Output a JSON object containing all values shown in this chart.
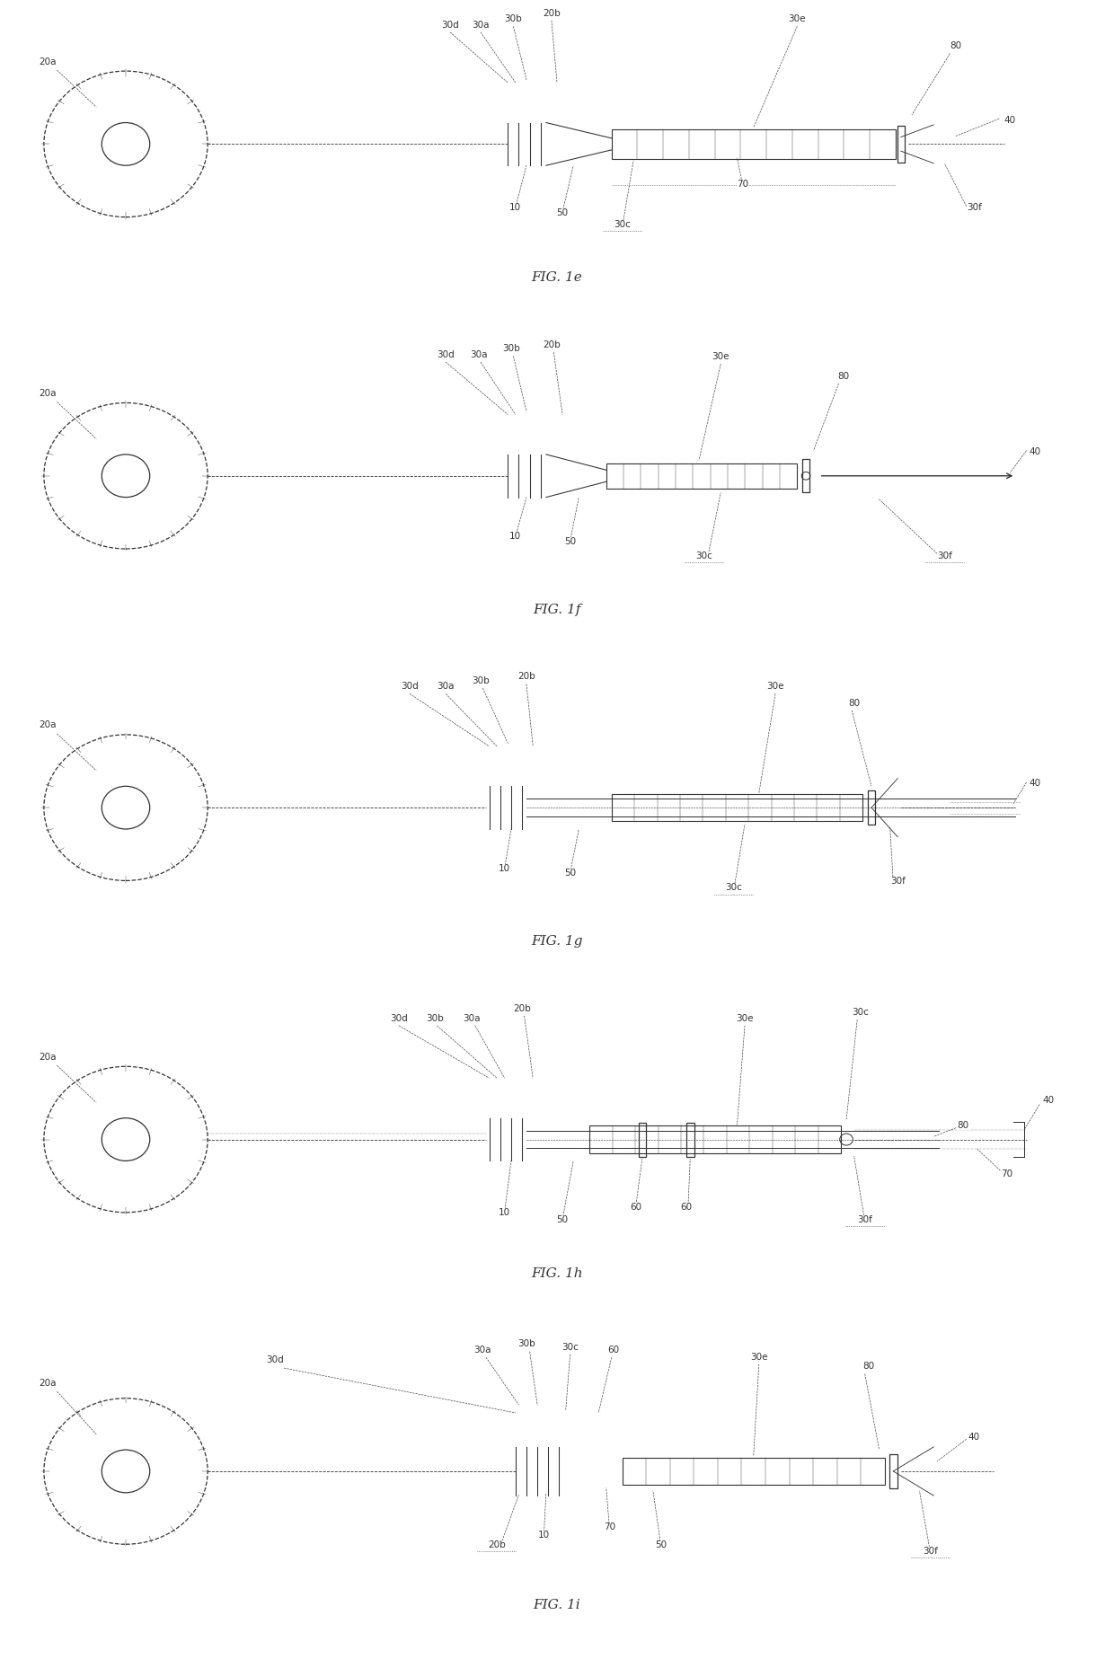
{
  "bg_color": "#ffffff",
  "line_color": "#333333",
  "lw": 0.9,
  "dlw": 0.55,
  "fs": 7.5,
  "fsl": 11,
  "panels": [
    {
      "label": "FIG. 1e"
    },
    {
      "label": "FIG. 1f"
    },
    {
      "label": "FIG. 1g"
    },
    {
      "label": "FIG. 1h"
    },
    {
      "label": "FIG. 1i"
    }
  ]
}
